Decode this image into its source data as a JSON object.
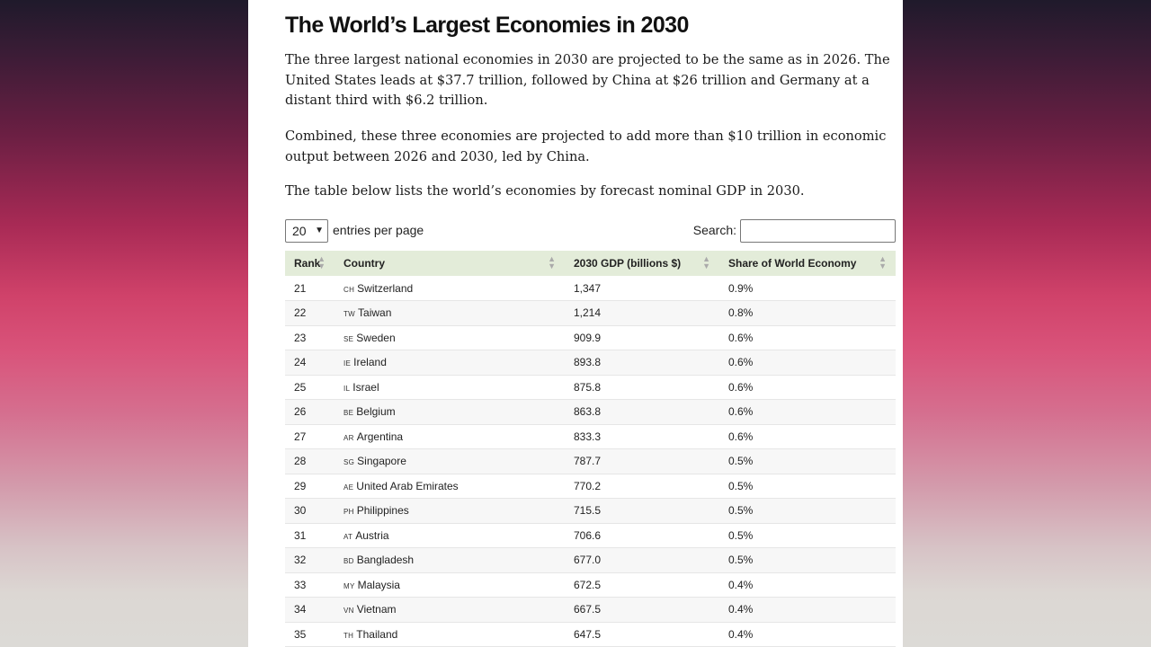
{
  "article": {
    "title": "The World’s Largest Economies in 2030",
    "paragraphs": [
      "The three largest national economies in 2030 are projected to be the same as in 2026. The United States leads at $37.7 trillion, followed by China at $26 trillion and Germany at a distant third with $6.2 trillion.",
      "Combined, these three economies are projected to add more than $10 trillion in economic output between 2026 and 2030, led by China.",
      "The table below lists the world’s economies by forecast nominal GDP in 2030."
    ]
  },
  "table_controls": {
    "entries_value": "20",
    "entries_label": "entries per page",
    "search_label": "Search:",
    "search_value": ""
  },
  "table": {
    "headers": [
      "Rank",
      "Country",
      "2030 GDP (billions $)",
      "Share of World Economy"
    ],
    "rows": [
      {
        "rank": "21",
        "code": "CH",
        "country": "Switzerland",
        "gdp": "1,347",
        "share": "0.9%"
      },
      {
        "rank": "22",
        "code": "TW",
        "country": "Taiwan",
        "gdp": "1,214",
        "share": "0.8%"
      },
      {
        "rank": "23",
        "code": "SE",
        "country": "Sweden",
        "gdp": "909.9",
        "share": "0.6%"
      },
      {
        "rank": "24",
        "code": "IE",
        "country": "Ireland",
        "gdp": "893.8",
        "share": "0.6%"
      },
      {
        "rank": "25",
        "code": "IL",
        "country": "Israel",
        "gdp": "875.8",
        "share": "0.6%"
      },
      {
        "rank": "26",
        "code": "BE",
        "country": "Belgium",
        "gdp": "863.8",
        "share": "0.6%"
      },
      {
        "rank": "27",
        "code": "AR",
        "country": "Argentina",
        "gdp": "833.3",
        "share": "0.6%"
      },
      {
        "rank": "28",
        "code": "SG",
        "country": "Singapore",
        "gdp": "787.7",
        "share": "0.5%"
      },
      {
        "rank": "29",
        "code": "AE",
        "country": "United Arab Emirates",
        "gdp": "770.2",
        "share": "0.5%"
      },
      {
        "rank": "30",
        "code": "PH",
        "country": "Philippines",
        "gdp": "715.5",
        "share": "0.5%"
      },
      {
        "rank": "31",
        "code": "AT",
        "country": "Austria",
        "gdp": "706.6",
        "share": "0.5%"
      },
      {
        "rank": "32",
        "code": "BD",
        "country": "Bangladesh",
        "gdp": "677.0",
        "share": "0.5%"
      },
      {
        "rank": "33",
        "code": "MY",
        "country": "Malaysia",
        "gdp": "672.5",
        "share": "0.4%"
      },
      {
        "rank": "34",
        "code": "VN",
        "country": "Vietnam",
        "gdp": "667.5",
        "share": "0.4%"
      },
      {
        "rank": "35",
        "code": "TH",
        "country": "Thailand",
        "gdp": "647.5",
        "share": "0.4%"
      }
    ]
  },
  "colors": {
    "header_bg": "#e3ecd9",
    "gradient_top": "#1f1a2b",
    "gradient_mid": "#d0426a",
    "gradient_bottom": "#dcdad6"
  }
}
